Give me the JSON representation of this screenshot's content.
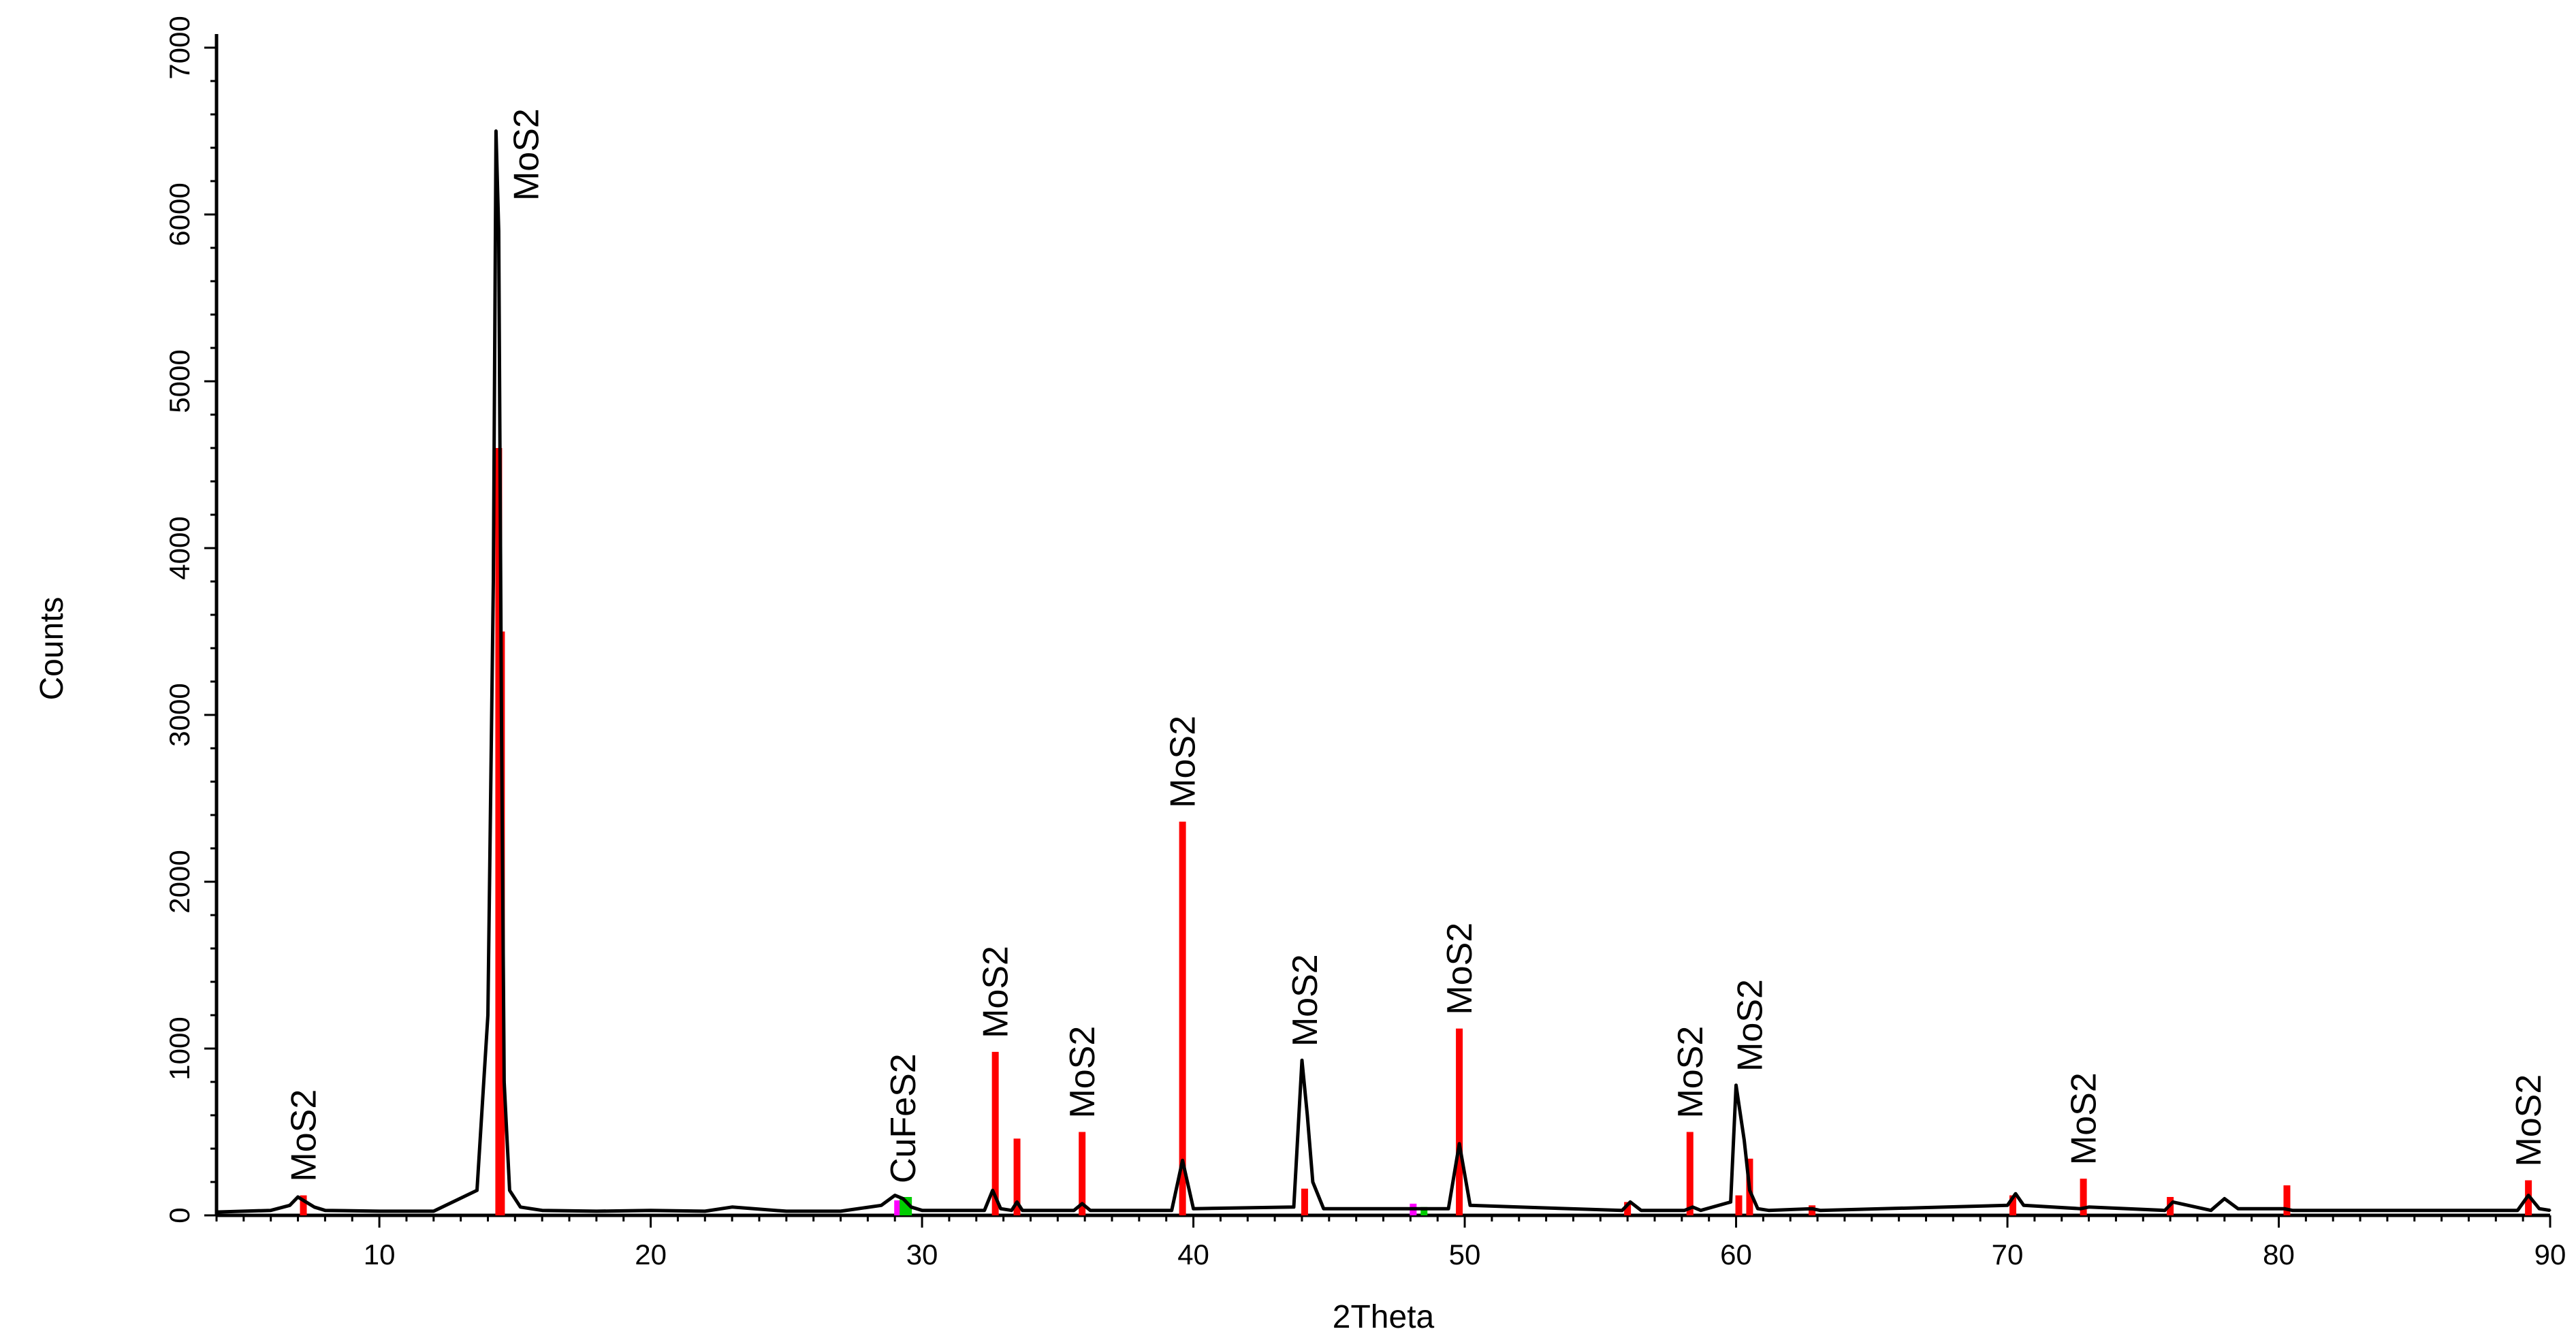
{
  "chart_data": {
    "type": "line",
    "title": "",
    "xlabel": "2Theta",
    "ylabel": "Counts",
    "xlim": [
      4,
      90
    ],
    "ylim": [
      0,
      7000
    ],
    "x_ticks": [
      10,
      20,
      30,
      40,
      50,
      60,
      70,
      80,
      90
    ],
    "y_ticks": [
      0,
      1000,
      2000,
      3000,
      4000,
      5000,
      6000,
      7000
    ],
    "grid": false,
    "legend": "none",
    "colors": {
      "pattern": "#000000",
      "mos2_reference": "#ff0000",
      "cufes2_reference": "#00cc00",
      "other_reference": "#ff00ff"
    },
    "series": [
      {
        "values_x": [
          4,
          6,
          6.7,
          7.0,
          7.2,
          7.6,
          8.0,
          10,
          12,
          13.6,
          14.0,
          14.2,
          14.3,
          14.4,
          14.5,
          14.6,
          14.8,
          15.2,
          16,
          18,
          20,
          22,
          23,
          25,
          27,
          28.5,
          29.0,
          29.3,
          29.6,
          30,
          32.3,
          32.6,
          32.9,
          33.3,
          33.5,
          33.7,
          35.6,
          35.9,
          36.2,
          39.2,
          39.6,
          40.0,
          43.7,
          44.0,
          44.2,
          44.4,
          44.8,
          49.4,
          49.8,
          50.2,
          52,
          55.8,
          56.1,
          56.5,
          58.1,
          58.4,
          58.7,
          59.8,
          60.0,
          60.3,
          60.5,
          60.8,
          61.2,
          62.8,
          63.1,
          70.0,
          70.3,
          70.6,
          72.7,
          73.0,
          75.8,
          76.1,
          77.5,
          78.0,
          78.5,
          80.2,
          80.5,
          88.8,
          89.2,
          89.6,
          90
        ],
        "values_y": [
          20,
          30,
          60,
          110,
          90,
          50,
          30,
          25,
          25,
          150,
          1200,
          3800,
          6500,
          5900,
          3000,
          800,
          150,
          50,
          30,
          25,
          30,
          25,
          50,
          25,
          25,
          60,
          120,
          100,
          50,
          30,
          30,
          150,
          40,
          30,
          80,
          30,
          30,
          70,
          30,
          30,
          330,
          40,
          50,
          930,
          600,
          200,
          40,
          40,
          430,
          60,
          50,
          30,
          80,
          30,
          30,
          50,
          30,
          80,
          780,
          450,
          150,
          40,
          30,
          40,
          30,
          60,
          130,
          60,
          40,
          50,
          30,
          80,
          30,
          100,
          40,
          40,
          30,
          30,
          120,
          40,
          30
        ]
      }
    ],
    "reference_sticks": {
      "mos2": {
        "x": [
          7.2,
          14.4,
          14.5,
          32.7,
          33.5,
          35.9,
          39.6,
          44.1,
          49.8,
          56.0,
          58.3,
          60.1,
          60.5,
          62.8,
          70.2,
          72.8,
          76.0,
          80.3,
          89.2
        ],
        "y": [
          120,
          4600,
          3500,
          980,
          460,
          500,
          2360,
          160,
          1120,
          80,
          500,
          120,
          340,
          60,
          120,
          220,
          110,
          180,
          210
        ]
      },
      "cufes2": {
        "x": [
          29.3,
          29.5,
          48.5
        ],
        "y": [
          110,
          110,
          50
        ]
      },
      "other": {
        "x": [
          29.1,
          48.1
        ],
        "y": [
          90,
          70
        ]
      }
    },
    "annotations": [
      {
        "text": "MoS2",
        "x": 7.2,
        "y": 120
      },
      {
        "text": "MoS2",
        "x": 15.4,
        "y": 6000
      },
      {
        "text": "CuFeS2",
        "x": 29.3,
        "y": 110
      },
      {
        "text": "MoS2",
        "x": 32.7,
        "y": 980
      },
      {
        "text": "MoS2",
        "x": 35.9,
        "y": 500
      },
      {
        "text": "MoS2",
        "x": 39.6,
        "y": 2360
      },
      {
        "text": "MoS2",
        "x": 44.1,
        "y": 930
      },
      {
        "text": "MoS2",
        "x": 49.8,
        "y": 1120
      },
      {
        "text": "MoS2",
        "x": 58.3,
        "y": 500
      },
      {
        "text": "MoS2",
        "x": 60.5,
        "y": 780
      },
      {
        "text": "MoS2",
        "x": 72.8,
        "y": 220
      },
      {
        "text": "MoS2",
        "x": 89.2,
        "y": 210
      }
    ]
  }
}
